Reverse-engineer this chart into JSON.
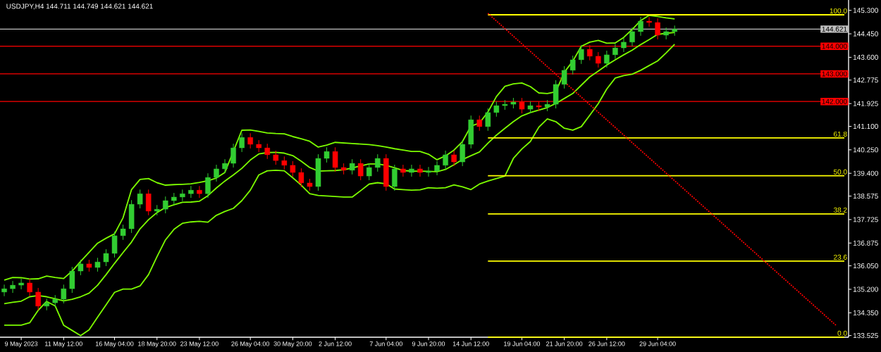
{
  "chart_data": {
    "type": "candlestick",
    "title": "USDJPY,H4  144.711 144.749 144.621 144.621",
    "ylim": [
      133.465,
      145.675
    ],
    "categories": [
      null,
      null,
      "9 May 2023",
      null,
      null,
      null,
      null,
      "11 May 12:00",
      null,
      null,
      null,
      null,
      null,
      "16 May 04:00",
      null,
      null,
      null,
      null,
      "18 May 20:00",
      null,
      null,
      null,
      null,
      "23 May 12:00",
      null,
      null,
      null,
      null,
      null,
      "26 May 04:00",
      null,
      null,
      null,
      null,
      "30 May 20:00",
      null,
      null,
      null,
      null,
      "2 Jun 12:00",
      null,
      null,
      null,
      null,
      null,
      "7 Jun 04:00",
      null,
      null,
      null,
      null,
      "9 Jun 20:00",
      null,
      null,
      null,
      null,
      "14 Jun 12:00",
      null,
      null,
      null,
      null,
      null,
      "19 Jun 04:00",
      null,
      null,
      null,
      null,
      "21 Jun 20:00",
      null,
      null,
      null,
      null,
      "26 Jun 12:00",
      null,
      null,
      null,
      null,
      null,
      "29 Jun 04:00",
      null,
      null,
      null,
      null,
      null,
      null,
      null,
      null,
      null,
      null,
      null,
      null,
      null,
      null,
      null,
      null,
      null,
      null,
      null,
      null,
      null,
      null
    ],
    "yticks": [
      {
        "value": 145.3,
        "label": "145.300"
      },
      {
        "value": 144.45,
        "label": "144.450"
      },
      {
        "value": 143.6,
        "label": "143.600"
      },
      {
        "value": 142.775,
        "label": "142.775"
      },
      {
        "value": 141.925,
        "label": "141.925"
      },
      {
        "value": 141.1,
        "label": "141.100"
      },
      {
        "value": 140.25,
        "label": "140.250"
      },
      {
        "value": 139.4,
        "label": "139.400"
      },
      {
        "value": 138.575,
        "label": "138.575"
      },
      {
        "value": 137.725,
        "label": "137.725"
      },
      {
        "value": 136.875,
        "label": "136.875"
      },
      {
        "value": 136.05,
        "label": "136.050"
      },
      {
        "value": 135.2,
        "label": "135.200"
      },
      {
        "value": 134.35,
        "label": "134.350"
      },
      {
        "value": 133.525,
        "label": "133.525"
      }
    ],
    "ohlc": [
      [
        135.1,
        135.37,
        134.95,
        135.22
      ],
      [
        135.22,
        135.5,
        135.07,
        135.35
      ],
      [
        135.35,
        135.58,
        135.2,
        135.43
      ],
      [
        135.43,
        135.58,
        134.95,
        135.1
      ],
      [
        135.1,
        135.25,
        134.44,
        134.59
      ],
      [
        134.59,
        134.86,
        134.44,
        134.71
      ],
      [
        134.71,
        134.99,
        134.56,
        134.84
      ],
      [
        134.84,
        135.37,
        134.69,
        135.22
      ],
      [
        135.22,
        136.01,
        135.07,
        135.86
      ],
      [
        135.86,
        136.27,
        135.71,
        136.12
      ],
      [
        136.12,
        136.27,
        135.84,
        135.99
      ],
      [
        135.99,
        136.34,
        135.84,
        136.19
      ],
      [
        136.19,
        136.65,
        136.04,
        136.5
      ],
      [
        136.5,
        137.29,
        136.35,
        137.14
      ],
      [
        137.14,
        137.54,
        136.99,
        137.39
      ],
      [
        137.39,
        138.43,
        137.24,
        138.28
      ],
      [
        138.28,
        138.81,
        138.13,
        138.66
      ],
      [
        138.66,
        138.81,
        137.88,
        138.03
      ],
      [
        138.03,
        138.25,
        137.88,
        138.1
      ],
      [
        138.1,
        138.56,
        137.95,
        138.41
      ],
      [
        138.41,
        138.69,
        138.26,
        138.54
      ],
      [
        138.54,
        138.81,
        138.39,
        138.66
      ],
      [
        138.66,
        138.94,
        138.51,
        138.79
      ],
      [
        138.79,
        138.94,
        138.51,
        138.66
      ],
      [
        138.66,
        139.4,
        138.51,
        139.25
      ],
      [
        139.25,
        139.71,
        139.1,
        139.56
      ],
      [
        139.56,
        139.91,
        139.41,
        139.76
      ],
      [
        139.76,
        140.47,
        139.61,
        140.32
      ],
      [
        140.32,
        140.85,
        140.17,
        140.7
      ],
      [
        140.7,
        140.85,
        140.3,
        140.45
      ],
      [
        140.45,
        140.6,
        140.17,
        140.32
      ],
      [
        140.32,
        140.47,
        139.92,
        140.07
      ],
      [
        140.07,
        140.22,
        139.71,
        139.86
      ],
      [
        139.86,
        140.01,
        139.54,
        139.69
      ],
      [
        139.69,
        139.84,
        139.28,
        139.43
      ],
      [
        139.43,
        139.58,
        138.9,
        139.05
      ],
      [
        139.05,
        139.2,
        138.77,
        138.92
      ],
      [
        138.92,
        140.09,
        138.77,
        139.94
      ],
      [
        139.94,
        140.34,
        139.79,
        140.19
      ],
      [
        140.19,
        140.34,
        139.46,
        139.61
      ],
      [
        139.61,
        139.76,
        139.36,
        139.51
      ],
      [
        139.51,
        139.91,
        139.36,
        139.76
      ],
      [
        139.76,
        139.91,
        139.15,
        139.3
      ],
      [
        139.3,
        139.76,
        139.15,
        139.61
      ],
      [
        139.61,
        140.09,
        139.46,
        139.94
      ],
      [
        139.94,
        140.09,
        138.77,
        138.92
      ],
      [
        138.92,
        139.71,
        138.77,
        139.56
      ],
      [
        139.56,
        139.71,
        139.28,
        139.43
      ],
      [
        139.43,
        139.71,
        139.28,
        139.56
      ],
      [
        139.56,
        139.71,
        139.28,
        139.43
      ],
      [
        139.43,
        139.63,
        139.28,
        139.48
      ],
      [
        139.48,
        139.84,
        139.33,
        139.69
      ],
      [
        139.69,
        140.22,
        139.54,
        140.07
      ],
      [
        140.07,
        140.22,
        139.66,
        139.81
      ],
      [
        139.81,
        140.6,
        139.66,
        140.45
      ],
      [
        140.45,
        141.49,
        140.3,
        141.34
      ],
      [
        141.34,
        141.49,
        140.94,
        141.09
      ],
      [
        141.09,
        141.75,
        140.94,
        141.6
      ],
      [
        141.6,
        142.0,
        141.45,
        141.85
      ],
      [
        141.85,
        142.05,
        141.7,
        141.9
      ],
      [
        141.9,
        142.13,
        141.75,
        141.98
      ],
      [
        141.98,
        142.13,
        141.57,
        141.72
      ],
      [
        141.72,
        142.0,
        141.57,
        141.85
      ],
      [
        141.85,
        142.0,
        141.65,
        141.8
      ],
      [
        141.8,
        142.05,
        141.65,
        141.9
      ],
      [
        141.9,
        142.77,
        141.75,
        142.62
      ],
      [
        142.62,
        143.28,
        142.47,
        143.13
      ],
      [
        143.13,
        143.66,
        142.98,
        143.51
      ],
      [
        143.51,
        144.04,
        143.36,
        143.89
      ],
      [
        143.89,
        144.04,
        143.49,
        143.64
      ],
      [
        143.64,
        143.79,
        143.23,
        143.38
      ],
      [
        143.38,
        143.84,
        143.23,
        143.69
      ],
      [
        143.69,
        144.09,
        143.54,
        143.94
      ],
      [
        143.94,
        144.3,
        143.79,
        144.15
      ],
      [
        144.15,
        144.68,
        144.0,
        144.53
      ],
      [
        144.53,
        145.06,
        144.38,
        144.91
      ],
      [
        144.91,
        145.06,
        144.71,
        144.86
      ],
      [
        144.86,
        145.01,
        144.25,
        144.4
      ],
      [
        144.4,
        144.68,
        144.25,
        144.53
      ],
      [
        144.53,
        144.75,
        144.38,
        144.62
      ],
      null,
      null,
      null,
      null,
      null,
      null,
      null,
      null,
      null,
      null,
      null,
      null,
      null,
      null,
      null,
      null,
      null,
      null,
      null,
      null
    ],
    "colors": [
      "#32cd32",
      "#32cd32",
      "#32cd32",
      "#ff0000",
      "#ff0000",
      "#32cd32",
      "#32cd32",
      "#32cd32",
      "#32cd32",
      "#32cd32",
      "#ff0000",
      "#32cd32",
      "#32cd32",
      "#32cd32",
      "#32cd32",
      "#32cd32",
      "#32cd32",
      "#ff0000",
      "#32cd32",
      "#32cd32",
      "#32cd32",
      "#32cd32",
      "#32cd32",
      "#ff0000",
      "#32cd32",
      "#32cd32",
      "#32cd32",
      "#32cd32",
      "#32cd32",
      "#ff0000",
      "#ff0000",
      "#ff0000",
      "#ff0000",
      "#ff0000",
      "#ff0000",
      "#ff0000",
      "#ff0000",
      "#32cd32",
      "#32cd32",
      "#ff0000",
      "#ff0000",
      "#32cd32",
      "#ff0000",
      "#32cd32",
      "#32cd32",
      "#ff0000",
      "#32cd32",
      "#ff0000",
      "#32cd32",
      "#ff0000",
      "#32cd32",
      "#32cd32",
      "#32cd32",
      "#ff0000",
      "#32cd32",
      "#32cd32",
      "#ff0000",
      "#32cd32",
      "#32cd32",
      "#32cd32",
      "#32cd32",
      "#ff0000",
      "#32cd32",
      "#ff0000",
      "#32cd32",
      "#32cd32",
      "#32cd32",
      "#32cd32",
      "#32cd32",
      "#ff0000",
      "#ff0000",
      "#32cd32",
      "#32cd32",
      "#32cd32",
      "#32cd32",
      "#32cd32",
      "#ff0000",
      "#ff0000",
      "#32cd32",
      "#32cd32",
      null,
      null,
      null,
      null,
      null,
      null,
      null,
      null,
      null,
      null,
      null,
      null,
      null,
      null,
      null,
      null,
      null,
      null,
      null,
      null
    ],
    "series": [
      {
        "type": "line",
        "color": "#7cfc00",
        "values": [
          135.53,
          135.63,
          135.62,
          135.57,
          135.58,
          135.68,
          135.63,
          135.59,
          135.86,
          136.21,
          136.54,
          136.87,
          137.05,
          137.21,
          137.79,
          138.81,
          139.18,
          139.21,
          139.06,
          138.97,
          138.99,
          139.0,
          139.02,
          139.07,
          139.13,
          139.23,
          139.43,
          null,
          140.96,
          140.97,
          140.92,
          140.86,
          140.84,
          140.83,
          140.73,
          140.65,
          140.56,
          140.35,
          140.42,
          140.52,
          140.5,
          140.48,
          140.46,
          140.44,
          140.4,
          140.35,
          140.29,
          140.24,
          140.19,
          140.19,
          140.09,
          139.89,
          140.03,
          140.24,
          140.55,
          141.11,
          141.22,
          141.62,
          142.18,
          142.55,
          142.64,
          142.67,
          142.54,
          142.31,
          142.29,
          142.35,
          143.06,
          143.46,
          144.0,
          144.15,
          144.21,
          144.11,
          144.12,
          144.32,
          144.61,
          144.93,
          145.12,
          145.08,
          145.03,
          144.99,
          null,
          null,
          null,
          null,
          null,
          null,
          null,
          null,
          null,
          null,
          null,
          null,
          null,
          null,
          null,
          null,
          null,
          null,
          null,
          null
        ]
      },
      {
        "type": "line",
        "color": "#7cfc00",
        "values": [
          134.68,
          134.73,
          134.77,
          134.93,
          134.97,
          134.93,
          134.86,
          134.78,
          134.84,
          134.93,
          135.06,
          135.35,
          135.73,
          136.14,
          136.53,
          136.91,
          137.39,
          137.72,
          137.98,
          138.16,
          138.26,
          138.35,
          138.36,
          138.39,
          138.59,
          138.87,
          139.12,
          139.34,
          139.58,
          139.88,
          140.1,
          140.15,
          140.16,
          140.13,
          140.04,
          139.84,
          139.61,
          139.48,
          139.49,
          139.5,
          139.53,
          139.59,
          139.67,
          139.74,
          139.74,
          139.69,
          139.6,
          139.5,
          139.48,
          null,
          139.47,
          139.46,
          139.54,
          139.71,
          139.9,
          140.04,
          140.17,
          140.49,
          140.78,
          141.03,
          141.27,
          141.48,
          141.6,
          141.69,
          141.78,
          141.93,
          142.11,
          142.29,
          142.59,
          142.89,
          143.1,
          143.32,
          143.51,
          143.69,
          143.86,
          144.06,
          144.24,
          144.43,
          144.47,
          144.5,
          null,
          null,
          null,
          null,
          null,
          null,
          null,
          null,
          null,
          null,
          null,
          null,
          null,
          null,
          null,
          null,
          null,
          null,
          null,
          null
        ]
      },
      {
        "type": "line",
        "color": "#7cfc00",
        "values": [
          133.9,
          133.9,
          133.9,
          133.99,
          134.44,
          134.76,
          134.6,
          133.9,
          133.71,
          133.52,
          133.73,
          134.19,
          134.64,
          135.09,
          135.21,
          135.21,
          135.32,
          135.73,
          136.38,
          136.99,
          137.37,
          137.59,
          137.64,
          137.66,
          137.63,
          137.88,
          138.02,
          138.13,
          138.41,
          138.79,
          139.34,
          139.49,
          139.51,
          139.49,
          139.24,
          138.97,
          138.66,
          138.6,
          138.58,
          138.56,
          138.54,
          138.54,
          138.77,
          139.01,
          139.06,
          139.02,
          138.83,
          138.81,
          138.79,
          138.8,
          138.88,
          138.86,
          138.88,
          138.98,
          138.91,
          138.81,
          139.01,
          139.12,
          139.21,
          139.3,
          139.94,
          140.28,
          140.55,
          141.07,
          141.37,
          141.27,
          141.03,
          140.96,
          141.09,
          141.5,
          141.92,
          142.45,
          142.85,
          142.94,
          142.99,
          143.13,
          143.3,
          143.47,
          143.76,
          144.07,
          null,
          null,
          null,
          null,
          null,
          null,
          null,
          null,
          null,
          null,
          null,
          null,
          null,
          null,
          null,
          null,
          null,
          null,
          null,
          null
        ]
      },
      {
        "type": "line",
        "name": "100.0",
        "color": "#ffff00",
        "values": [
          null,
          null,
          null,
          null,
          null,
          null,
          null,
          null,
          null,
          null,
          null,
          null,
          null,
          null,
          null,
          null,
          null,
          null,
          null,
          null,
          null,
          null,
          null,
          null,
          null,
          null,
          null,
          null,
          null,
          null,
          null,
          null,
          null,
          null,
          null,
          null,
          null,
          null,
          null,
          null,
          null,
          null,
          null,
          null,
          null,
          null,
          null,
          null,
          null,
          null,
          null,
          null,
          null,
          null,
          null,
          null,
          null,
          145.14,
          145.14,
          145.14,
          145.14,
          145.14,
          145.14,
          145.14,
          145.14,
          145.14,
          145.14,
          145.14,
          145.14,
          145.14,
          145.14,
          145.14,
          145.14,
          145.14,
          145.14,
          145.14,
          145.14,
          145.14,
          145.14,
          145.14,
          145.14,
          145.14,
          145.14,
          145.14,
          145.14,
          145.14,
          145.14,
          145.14,
          145.14,
          145.14,
          145.14,
          145.14,
          145.14,
          145.14,
          145.14,
          145.14,
          145.14,
          145.14,
          145.14,
          145.14
        ]
      },
      {
        "type": "line",
        "name": "61.8",
        "color": "#ffff00",
        "values": [
          null,
          null,
          null,
          null,
          null,
          null,
          null,
          null,
          null,
          null,
          null,
          null,
          null,
          null,
          null,
          null,
          null,
          null,
          null,
          null,
          null,
          null,
          null,
          null,
          null,
          null,
          null,
          null,
          null,
          null,
          null,
          null,
          null,
          null,
          null,
          null,
          null,
          null,
          null,
          null,
          null,
          null,
          null,
          null,
          null,
          null,
          null,
          null,
          null,
          null,
          null,
          null,
          null,
          null,
          null,
          null,
          null,
          140.68,
          140.68,
          140.68,
          140.68,
          140.68,
          140.68,
          140.68,
          140.68,
          140.68,
          140.68,
          140.68,
          140.68,
          140.68,
          140.68,
          140.68,
          140.68,
          140.68,
          140.68,
          140.68,
          140.68,
          140.68,
          140.68,
          140.68,
          140.68,
          140.68,
          140.68,
          140.68,
          140.68,
          140.68,
          140.68,
          140.68,
          140.68,
          140.68,
          140.68,
          140.68,
          140.68,
          140.68,
          140.68,
          140.68,
          140.68,
          140.68,
          140.68,
          140.68
        ]
      },
      {
        "type": "line",
        "name": "50.0",
        "color": "#ffff00",
        "values": [
          null,
          null,
          null,
          null,
          null,
          null,
          null,
          null,
          null,
          null,
          null,
          null,
          null,
          null,
          null,
          null,
          null,
          null,
          null,
          null,
          null,
          null,
          null,
          null,
          null,
          null,
          null,
          null,
          null,
          null,
          null,
          null,
          null,
          null,
          null,
          null,
          null,
          null,
          null,
          null,
          null,
          null,
          null,
          null,
          null,
          null,
          null,
          null,
          null,
          null,
          null,
          null,
          null,
          null,
          null,
          null,
          null,
          139.31,
          139.31,
          139.31,
          139.31,
          139.31,
          139.31,
          139.31,
          139.31,
          139.31,
          139.31,
          139.31,
          139.31,
          139.31,
          139.31,
          139.31,
          139.31,
          139.31,
          139.31,
          139.31,
          139.31,
          139.31,
          139.31,
          139.31,
          139.31,
          139.31,
          139.31,
          139.31,
          139.31,
          139.31,
          139.31,
          139.31,
          139.31,
          139.31,
          139.31,
          139.31,
          139.31,
          139.31,
          139.31,
          139.31,
          139.31,
          139.31,
          139.31,
          139.31
        ]
      },
      {
        "type": "line",
        "name": "38.2",
        "color": "#ffff00",
        "values": [
          null,
          null,
          null,
          null,
          null,
          null,
          null,
          null,
          null,
          null,
          null,
          null,
          null,
          null,
          null,
          null,
          null,
          null,
          null,
          null,
          null,
          null,
          null,
          null,
          null,
          null,
          null,
          null,
          null,
          null,
          null,
          null,
          null,
          null,
          null,
          null,
          null,
          null,
          null,
          null,
          null,
          null,
          null,
          null,
          null,
          null,
          null,
          null,
          null,
          null,
          null,
          null,
          null,
          null,
          null,
          null,
          null,
          137.93,
          137.93,
          137.93,
          137.93,
          137.93,
          137.93,
          137.93,
          137.93,
          137.93,
          137.93,
          137.93,
          137.93,
          137.93,
          137.93,
          137.93,
          137.93,
          137.93,
          137.93,
          137.93,
          137.93,
          137.93,
          137.93,
          137.93,
          137.93,
          137.93,
          137.93,
          137.93,
          137.93,
          137.93,
          137.93,
          137.93,
          137.93,
          137.93,
          137.93,
          137.93,
          137.93,
          137.93,
          137.93,
          137.93,
          137.93,
          137.93,
          137.93,
          137.93
        ]
      },
      {
        "type": "line",
        "name": "23.6",
        "color": "#ffff00",
        "values": [
          null,
          null,
          null,
          null,
          null,
          null,
          null,
          null,
          null,
          null,
          null,
          null,
          null,
          null,
          null,
          null,
          null,
          null,
          null,
          null,
          null,
          null,
          null,
          null,
          null,
          null,
          null,
          null,
          null,
          null,
          null,
          null,
          null,
          null,
          null,
          null,
          null,
          null,
          null,
          null,
          null,
          null,
          null,
          null,
          null,
          null,
          null,
          null,
          null,
          null,
          null,
          null,
          null,
          null,
          null,
          null,
          null,
          136.22,
          136.22,
          136.22,
          136.22,
          136.22,
          136.22,
          136.22,
          136.22,
          136.22,
          136.22,
          136.22,
          136.22,
          136.22,
          136.22,
          136.22,
          136.22,
          136.22,
          136.22,
          136.22,
          136.22,
          136.22,
          136.22,
          136.22,
          136.22,
          136.22,
          136.22,
          136.22,
          136.22,
          136.22,
          136.22,
          136.22,
          136.22,
          136.22,
          136.22,
          136.22,
          136.22,
          136.22,
          136.22,
          136.22,
          136.22,
          136.22,
          136.22,
          136.22
        ]
      },
      {
        "type": "line",
        "name": "0.0",
        "color": "#ffff00",
        "values": [
          null,
          null,
          null,
          null,
          null,
          null,
          null,
          null,
          null,
          null,
          null,
          null,
          null,
          null,
          null,
          null,
          null,
          null,
          null,
          null,
          null,
          null,
          null,
          null,
          null,
          null,
          null,
          null,
          null,
          null,
          null,
          null,
          null,
          null,
          null,
          null,
          null,
          null,
          null,
          null,
          null,
          null,
          null,
          null,
          null,
          null,
          null,
          null,
          null,
          null,
          null,
          null,
          null,
          null,
          null,
          null,
          null,
          133.47,
          133.47,
          133.47,
          133.47,
          133.47,
          133.47,
          133.47,
          133.47,
          133.47,
          133.47,
          133.47,
          133.47,
          133.47,
          133.47,
          133.47,
          133.47,
          133.47,
          133.47,
          133.47,
          133.47,
          133.47,
          133.47,
          133.47,
          133.47,
          133.47,
          133.47,
          133.47,
          133.47,
          133.47,
          133.47,
          133.47,
          133.47,
          133.47,
          133.47,
          133.47,
          133.47,
          133.47,
          133.47,
          133.47,
          133.47,
          133.47,
          133.47,
          133.47
        ]
      },
      {
        "type": "line",
        "color": "#ff0000",
        "line_style": "dotted",
        "values": [
          null,
          null,
          null,
          null,
          null,
          null,
          null,
          null,
          null,
          null,
          null,
          null,
          null,
          null,
          null,
          null,
          null,
          null,
          null,
          null,
          null,
          null,
          null,
          null,
          null,
          null,
          null,
          null,
          null,
          null,
          null,
          null,
          null,
          null,
          null,
          null,
          null,
          null,
          null,
          null,
          null,
          null,
          null,
          null,
          null,
          null,
          null,
          null,
          null,
          null,
          null,
          null,
          null,
          null,
          null,
          null,
          null,
          145.19,
          null,
          null,
          null,
          null,
          null,
          null,
          null,
          null,
          null,
          null,
          null,
          null,
          null,
          null,
          null,
          null,
          null,
          null,
          null,
          null,
          null,
          null,
          null,
          null,
          null,
          null,
          null,
          null,
          null,
          null,
          null,
          null,
          null,
          null,
          null,
          null,
          null,
          null,
          null,
          null,
          133.9,
          null
        ]
      }
    ],
    "ref_lines": [
      {
        "axis": "y",
        "value": 144.621,
        "label": "144.621",
        "color": "#c0c0c0"
      },
      {
        "axis": "y",
        "value": 144.0,
        "label": "144.000",
        "color": "#ff0000"
      },
      {
        "axis": "y",
        "value": 143.0,
        "label": "143.000",
        "color": "#ff0000"
      },
      {
        "axis": "y",
        "value": 142.0,
        "label": "142.000",
        "color": "#ff0000"
      }
    ]
  }
}
